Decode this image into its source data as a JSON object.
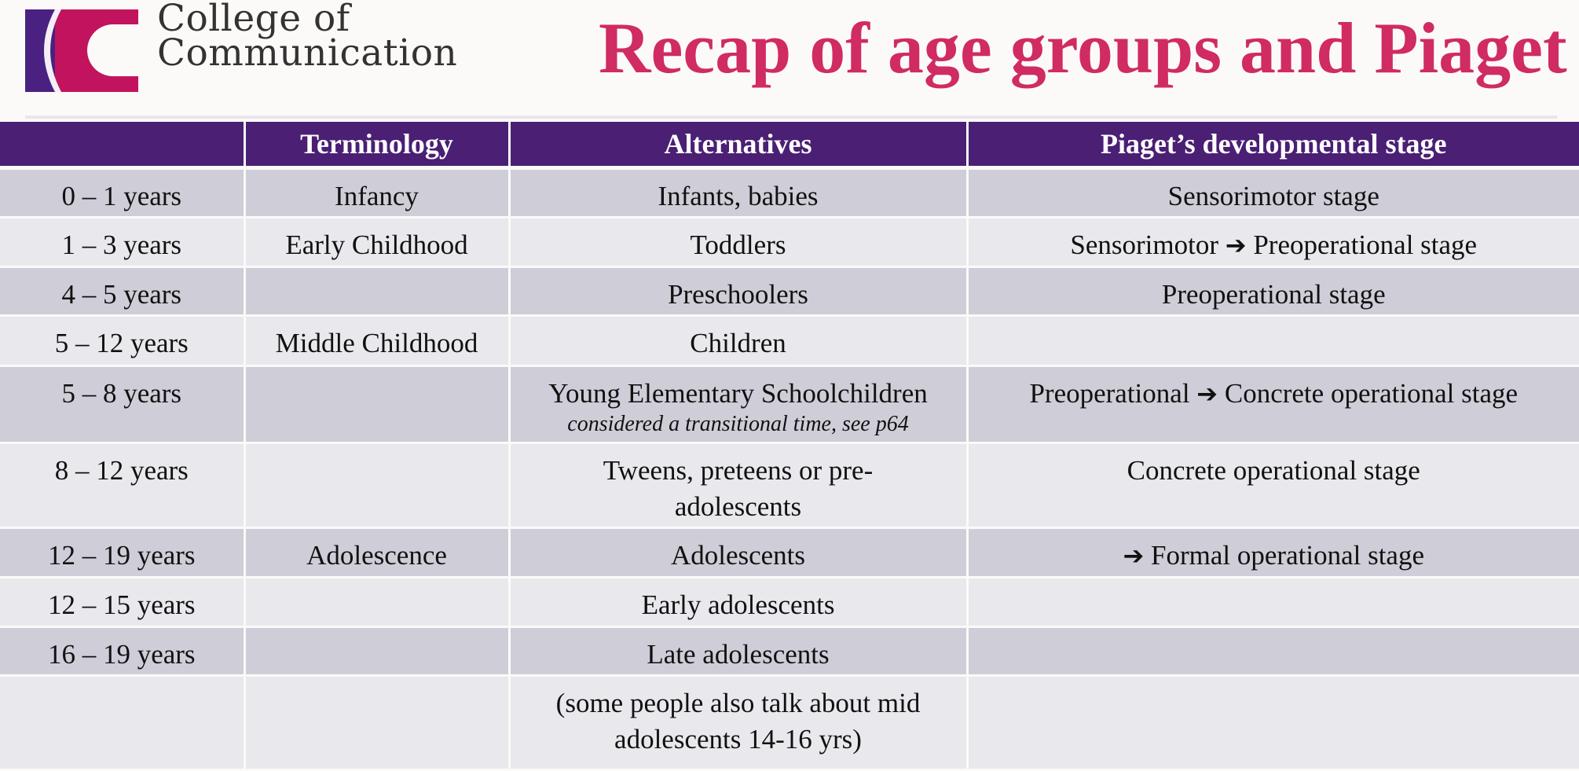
{
  "header": {
    "logo_line1": "College of",
    "logo_line2": "Communication",
    "title": "Recap of age groups and Piaget",
    "colors": {
      "title": "#d02b63",
      "header_bg": "#4a1f74",
      "logo_purple": "#4a2180",
      "logo_magenta": "#c2145e"
    }
  },
  "table": {
    "headers": [
      "",
      "Terminology",
      "Alternatives",
      "Piaget’s developmental stage"
    ],
    "arrow_glyph": "➔",
    "rows": [
      {
        "age": "0 – 1 years",
        "term": "Infancy",
        "alt": "Infants, babies",
        "alt_note": "",
        "stage_before": "Sensorimotor stage",
        "stage_after": ""
      },
      {
        "age": "1 – 3 years",
        "term": "Early Childhood",
        "alt": "Toddlers",
        "alt_note": "",
        "stage_before": "Sensorimotor",
        "stage_after": "Preoperational stage"
      },
      {
        "age": "4 – 5 years",
        "term": "",
        "alt": "Preschoolers",
        "alt_note": "",
        "stage_before": "Preoperational stage",
        "stage_after": ""
      },
      {
        "age": "5 – 12 years",
        "term": "Middle Childhood",
        "alt": "Children",
        "alt_note": "",
        "stage_before": "",
        "stage_after": ""
      },
      {
        "age": "5 – 8 years",
        "term": "",
        "alt": "Young Elementary Schoolchildren",
        "alt_note": "considered a transitional time, see p64",
        "stage_before": "Preoperational",
        "stage_after": "Concrete operational stage"
      },
      {
        "age": "8 – 12 years",
        "term": "",
        "alt": "Tweens, preteens or pre-adolescents",
        "alt_note": "",
        "stage_before": "Concrete operational stage",
        "stage_after": ""
      },
      {
        "age": "12 – 19 years",
        "term": "Adolescence",
        "alt": "Adolescents",
        "alt_note": "",
        "stage_before": "",
        "stage_after": "Formal operational stage"
      },
      {
        "age": "12 – 15 years",
        "term": "",
        "alt": "Early adolescents",
        "alt_note": "",
        "stage_before": "",
        "stage_after": ""
      },
      {
        "age": "16 – 19 years",
        "term": "",
        "alt": "Late adolescents",
        "alt_note": "",
        "stage_before": "",
        "stage_after": ""
      },
      {
        "age": "",
        "term": "",
        "alt": "(some people also talk about mid adolescents 14-16 yrs)",
        "alt_note": "",
        "stage_before": "",
        "stage_after": ""
      }
    ]
  }
}
